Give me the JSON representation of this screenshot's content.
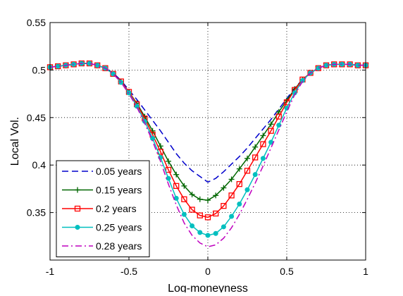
{
  "chart_data": {
    "type": "line",
    "title": "",
    "xlabel": "Log-moneyness",
    "ylabel": "Local Vol.",
    "xlim": [
      -1,
      1
    ],
    "ylim": [
      0.3,
      0.55
    ],
    "xticks": [
      "-1",
      "-0.5",
      "0",
      "0.5",
      "1"
    ],
    "yticks": [
      "0.35",
      "0.4",
      "0.45",
      "0.5",
      "0.55"
    ],
    "grid": true,
    "legend_position": "bottom-left",
    "series": [
      {
        "name": "0.05 years",
        "color": "#0000cc",
        "style": "dashed",
        "marker": "none",
        "x": [
          -1,
          -0.95,
          -0.9,
          -0.85,
          -0.8,
          -0.75,
          -0.7,
          -0.65,
          -0.6,
          -0.55,
          -0.5,
          -0.45,
          -0.4,
          -0.35,
          -0.3,
          -0.25,
          -0.2,
          -0.15,
          -0.1,
          -0.05,
          0,
          0.05,
          0.1,
          0.15,
          0.2,
          0.25,
          0.3,
          0.35,
          0.4,
          0.45,
          0.5,
          0.55,
          0.6,
          0.65,
          0.7,
          0.75,
          0.8,
          0.85,
          0.9,
          0.95,
          1
        ],
        "y": [
          0.503,
          0.504,
          0.505,
          0.506,
          0.507,
          0.507,
          0.505,
          0.502,
          0.497,
          0.489,
          0.479,
          0.469,
          0.458,
          0.447,
          0.436,
          0.424,
          0.412,
          0.402,
          0.394,
          0.388,
          0.382,
          0.386,
          0.393,
          0.401,
          0.409,
          0.418,
          0.428,
          0.438,
          0.448,
          0.459,
          0.47,
          0.481,
          0.49,
          0.497,
          0.502,
          0.505,
          0.506,
          0.506,
          0.506,
          0.505,
          0.505
        ]
      },
      {
        "name": "0.15 years",
        "color": "#006600",
        "style": "solid",
        "marker": "plus",
        "x": [
          -1,
          -0.95,
          -0.9,
          -0.85,
          -0.8,
          -0.75,
          -0.7,
          -0.65,
          -0.6,
          -0.55,
          -0.5,
          -0.45,
          -0.4,
          -0.35,
          -0.3,
          -0.25,
          -0.2,
          -0.15,
          -0.1,
          -0.05,
          0,
          0.05,
          0.1,
          0.15,
          0.2,
          0.25,
          0.3,
          0.35,
          0.4,
          0.45,
          0.5,
          0.55,
          0.6,
          0.65,
          0.7,
          0.75,
          0.8,
          0.85,
          0.9,
          0.95,
          1
        ],
        "y": [
          0.503,
          0.504,
          0.505,
          0.506,
          0.507,
          0.507,
          0.505,
          0.502,
          0.496,
          0.488,
          0.477,
          0.465,
          0.451,
          0.436,
          0.42,
          0.404,
          0.39,
          0.378,
          0.369,
          0.364,
          0.363,
          0.368,
          0.376,
          0.385,
          0.396,
          0.407,
          0.419,
          0.431,
          0.443,
          0.456,
          0.468,
          0.48,
          0.49,
          0.497,
          0.502,
          0.505,
          0.506,
          0.506,
          0.506,
          0.505,
          0.505
        ]
      },
      {
        "name": "0.2 years",
        "color": "#ff0000",
        "style": "solid",
        "marker": "square",
        "x": [
          -1,
          -0.95,
          -0.9,
          -0.85,
          -0.8,
          -0.75,
          -0.7,
          -0.65,
          -0.6,
          -0.55,
          -0.5,
          -0.45,
          -0.4,
          -0.35,
          -0.3,
          -0.25,
          -0.2,
          -0.15,
          -0.1,
          -0.05,
          0,
          0.05,
          0.1,
          0.15,
          0.2,
          0.25,
          0.3,
          0.35,
          0.4,
          0.45,
          0.5,
          0.55,
          0.6,
          0.65,
          0.7,
          0.75,
          0.8,
          0.85,
          0.9,
          0.95,
          1
        ],
        "y": [
          0.503,
          0.504,
          0.505,
          0.506,
          0.507,
          0.507,
          0.505,
          0.502,
          0.496,
          0.488,
          0.477,
          0.464,
          0.449,
          0.432,
          0.414,
          0.395,
          0.378,
          0.364,
          0.353,
          0.347,
          0.345,
          0.349,
          0.357,
          0.368,
          0.38,
          0.394,
          0.408,
          0.422,
          0.436,
          0.451,
          0.466,
          0.479,
          0.49,
          0.497,
          0.502,
          0.505,
          0.506,
          0.506,
          0.506,
          0.505,
          0.505
        ]
      },
      {
        "name": "0.25 years",
        "color": "#00bfbf",
        "style": "solid",
        "marker": "circle",
        "x": [
          -1,
          -0.95,
          -0.9,
          -0.85,
          -0.8,
          -0.75,
          -0.7,
          -0.65,
          -0.6,
          -0.55,
          -0.5,
          -0.45,
          -0.4,
          -0.35,
          -0.3,
          -0.25,
          -0.2,
          -0.15,
          -0.1,
          -0.05,
          0,
          0.05,
          0.1,
          0.15,
          0.2,
          0.25,
          0.3,
          0.35,
          0.4,
          0.45,
          0.5,
          0.55,
          0.6,
          0.65,
          0.7,
          0.75,
          0.8,
          0.85,
          0.9,
          0.95,
          1
        ],
        "y": [
          0.503,
          0.504,
          0.505,
          0.506,
          0.507,
          0.507,
          0.505,
          0.502,
          0.496,
          0.487,
          0.476,
          0.462,
          0.446,
          0.428,
          0.408,
          0.386,
          0.365,
          0.348,
          0.336,
          0.329,
          0.326,
          0.328,
          0.335,
          0.346,
          0.359,
          0.374,
          0.39,
          0.407,
          0.424,
          0.442,
          0.46,
          0.476,
          0.489,
          0.497,
          0.502,
          0.505,
          0.506,
          0.506,
          0.506,
          0.505,
          0.505
        ]
      },
      {
        "name": "0.28 years",
        "color": "#bf00bf",
        "style": "dashdot",
        "marker": "none",
        "x": [
          -1,
          -0.95,
          -0.9,
          -0.85,
          -0.8,
          -0.75,
          -0.7,
          -0.65,
          -0.6,
          -0.55,
          -0.5,
          -0.45,
          -0.4,
          -0.35,
          -0.3,
          -0.25,
          -0.2,
          -0.15,
          -0.1,
          -0.05,
          0,
          0.05,
          0.1,
          0.15,
          0.2,
          0.25,
          0.3,
          0.35,
          0.4,
          0.45,
          0.5,
          0.55,
          0.6,
          0.65,
          0.7,
          0.75,
          0.8,
          0.85,
          0.9,
          0.95,
          1
        ],
        "y": [
          0.503,
          0.504,
          0.505,
          0.506,
          0.507,
          0.507,
          0.505,
          0.502,
          0.496,
          0.487,
          0.475,
          0.461,
          0.444,
          0.425,
          0.404,
          0.38,
          0.358,
          0.339,
          0.326,
          0.318,
          0.314,
          0.316,
          0.323,
          0.334,
          0.348,
          0.364,
          0.381,
          0.399,
          0.418,
          0.437,
          0.456,
          0.474,
          0.488,
          0.497,
          0.502,
          0.505,
          0.506,
          0.506,
          0.506,
          0.505,
          0.505
        ]
      }
    ]
  }
}
